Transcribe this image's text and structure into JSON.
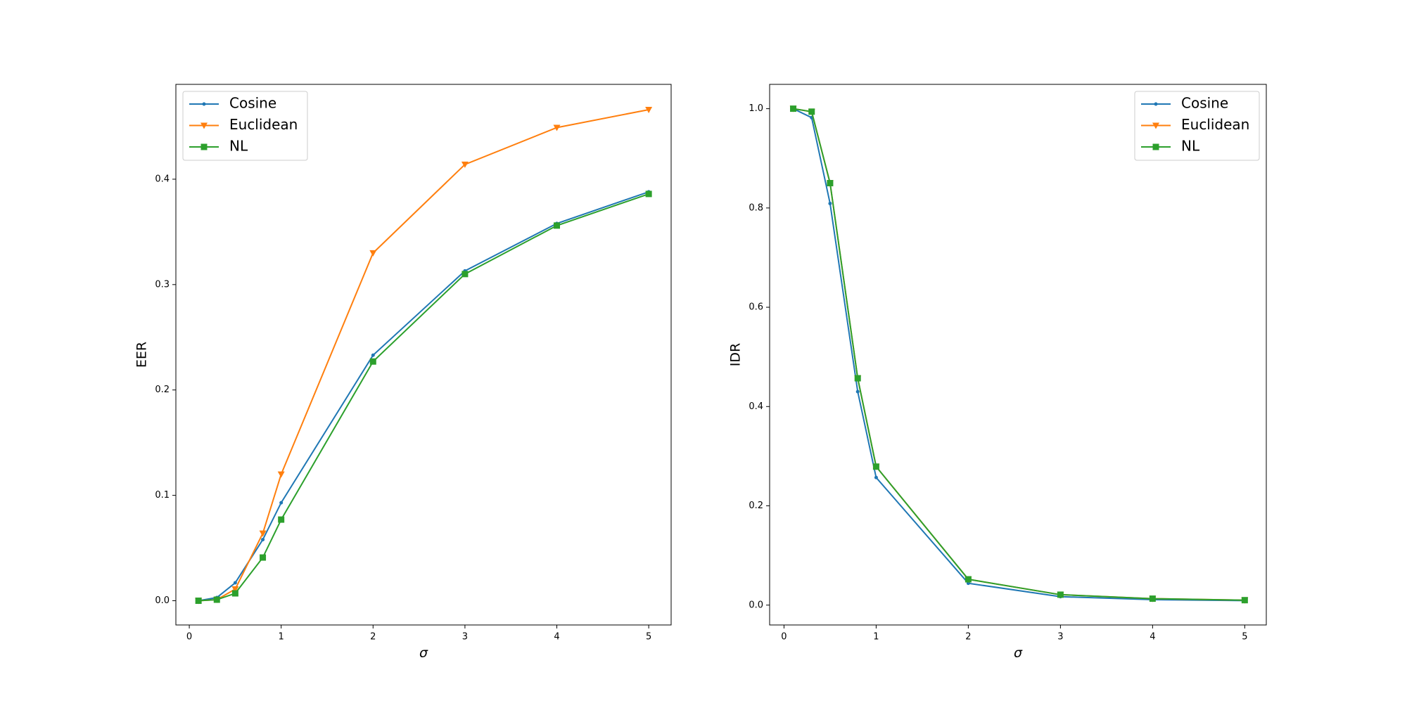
{
  "chart_data": [
    {
      "type": "line",
      "xlabel": "σ",
      "ylabel": "EER",
      "legend": "upper left",
      "x": [
        0.1,
        0.3,
        0.5,
        0.8,
        1,
        2,
        3,
        4,
        5
      ],
      "xlim": [
        -0.146,
        5.244
      ],
      "xticks": [
        0,
        1,
        2,
        3,
        4,
        5
      ],
      "ylim": [
        -0.023,
        0.49
      ],
      "yticks": [
        {
          "value": 0,
          "label": "0.0"
        },
        0.1,
        0.2,
        0.3,
        0.4
      ],
      "series": [
        {
          "name": "Cosine",
          "color": "#1f77b4",
          "marker": "point",
          "values": [
            0.0,
            0.003,
            0.017,
            0.058,
            0.093,
            0.233,
            0.313,
            0.358,
            0.388
          ]
        },
        {
          "name": "Euclidean",
          "color": "#ff7f0e",
          "marker": "triangle_down",
          "values": [
            0.0,
            0.001,
            0.011,
            0.064,
            0.12,
            0.33,
            0.414,
            0.449,
            0.466
          ]
        },
        {
          "name": "NL",
          "color": "#2ca02c",
          "marker": "square",
          "values": [
            0.0,
            0.001,
            0.007,
            0.041,
            0.077,
            0.227,
            0.31,
            0.356,
            0.386
          ]
        }
      ]
    },
    {
      "type": "line",
      "xlabel": "σ",
      "ylabel": "IDR",
      "legend": "upper right",
      "x": [
        0.1,
        0.3,
        0.5,
        0.8,
        1,
        2,
        3,
        4,
        5
      ],
      "xlim": [
        -0.156,
        5.234
      ],
      "xticks": [
        0,
        1,
        2,
        3,
        4,
        5
      ],
      "ylim": [
        -0.04,
        1.049
      ],
      "yticks": [
        {
          "value": 0,
          "label": "0.0"
        },
        0.2,
        0.4,
        0.6,
        0.8,
        {
          "value": 1,
          "label": "1.0"
        }
      ],
      "series": [
        {
          "name": "Cosine",
          "color": "#1f77b4",
          "marker": "point",
          "values": [
            1.0,
            0.982,
            0.809,
            0.43,
            0.257,
            0.044,
            0.017,
            0.011,
            0.009
          ]
        },
        {
          "name": "Euclidean",
          "color": "#ff7f0e",
          "marker": "triangle_down",
          "values": [
            1.0,
            0.994,
            0.85,
            0.457,
            0.279,
            0.052,
            0.021,
            0.013,
            0.01
          ]
        },
        {
          "name": "NL",
          "color": "#2ca02c",
          "marker": "square",
          "values": [
            1.0,
            0.994,
            0.85,
            0.457,
            0.279,
            0.052,
            0.021,
            0.013,
            0.01
          ]
        }
      ]
    }
  ]
}
